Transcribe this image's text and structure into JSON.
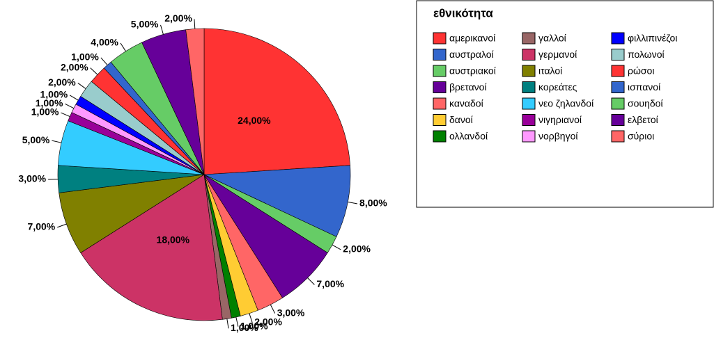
{
  "chart_data": {
    "type": "pie",
    "title": "εθνικότητα",
    "categories": [
      "αμερικανοί",
      "αυστραλοί",
      "αυστριακοί",
      "βρετανοί",
      "καναδοί",
      "δανοί",
      "ολλανδοί",
      "γαλλοί",
      "γερμανοί",
      "ιταλοί",
      "κορεάτες",
      "νεο ζηλανδοί",
      "νιγηριανοί",
      "νορβηγοί",
      "φιλλιπινέζοι",
      "πολωνοί",
      "ρώσοι",
      "ισπανοί",
      "σουηδοί",
      "ελβετοί",
      "σύριοι"
    ],
    "values": [
      24,
      8,
      2,
      7,
      3,
      2,
      1,
      1,
      18,
      7,
      3,
      5,
      1,
      1,
      1,
      2,
      2,
      1,
      4,
      5,
      2
    ],
    "value_labels": [
      "24,00%",
      "8,00%",
      "2,00%",
      "7,00%",
      "3,00%",
      "2,00%",
      "1,00%",
      "1,00%",
      "18,00%",
      "7,00%",
      "3,00%",
      "5,00%",
      "1,00%",
      "1,00%",
      "1,00%",
      "2,00%",
      "2,00%",
      "1,00%",
      "4,00%",
      "5,00%",
      "2,00%"
    ],
    "colors": [
      "#ff3333",
      "#3366cc",
      "#66cc66",
      "#660099",
      "#ff6666",
      "#ffcc33",
      "#008000",
      "#996666",
      "#cc3366",
      "#808000",
      "#008080",
      "#33ccff",
      "#990099",
      "#ff99ff",
      "#0000ff",
      "#99cccc",
      "#ff3333",
      "#3366cc",
      "#66cc66",
      "#660099",
      "#ff6666"
    ]
  }
}
